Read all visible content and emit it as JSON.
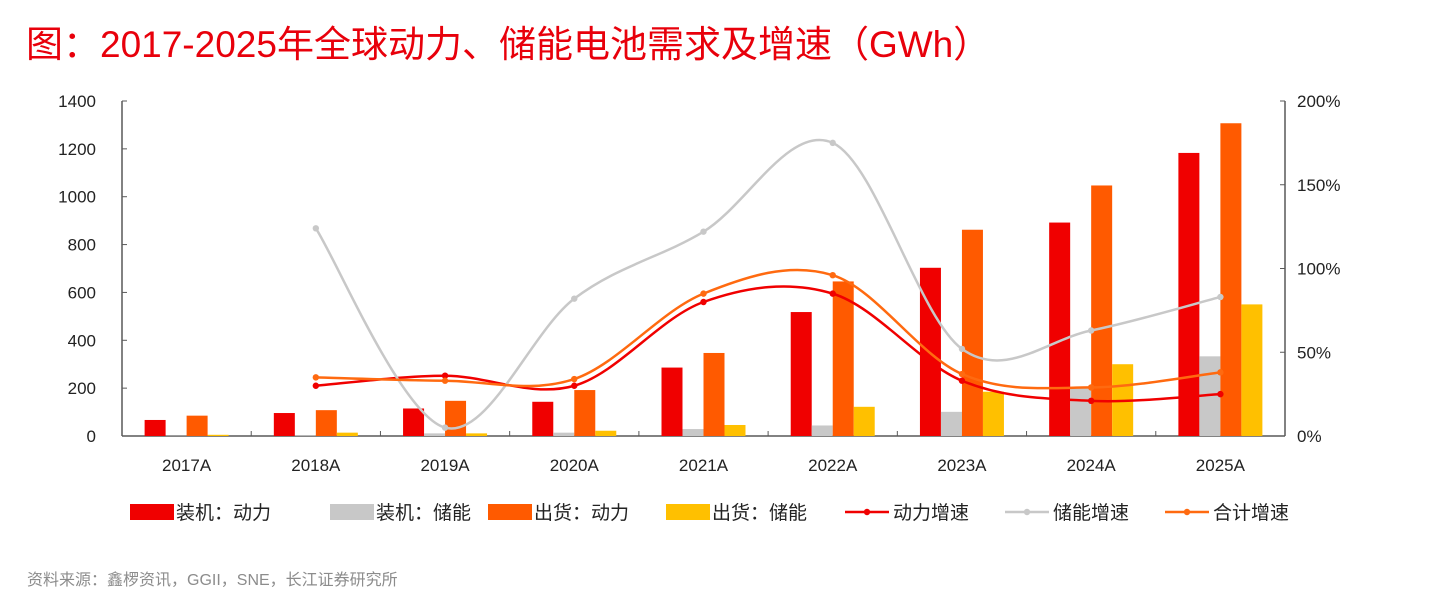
{
  "title": "图：2017-2025年全球动力、储能电池需求及增速（GWh）",
  "source": "资料来源：鑫椤资讯，GGII，SNE，长江证券研究所",
  "chart_data": {
    "type": "bar",
    "title": "图：2017-2025年全球动力、储能电池需求及增速（GWh）",
    "categories": [
      "2017A",
      "2018A",
      "2019A",
      "2020A",
      "2021A",
      "2022A",
      "2023A",
      "2024A",
      "2025A"
    ],
    "y_left": {
      "range": [
        0,
        1400
      ],
      "ticks": [
        "0",
        "200",
        "400",
        "600",
        "800",
        "1000",
        "1200",
        "1400"
      ]
    },
    "y_right": {
      "range": [
        0,
        200
      ],
      "unit": "%",
      "ticks": [
        "0%",
        "50%",
        "100%",
        "150%",
        "200%"
      ]
    },
    "grid": false,
    "legend_position": "bottom",
    "bar_series": [
      {
        "name": "装机：动力",
        "color": "#f00000",
        "values": [
          67,
          96,
          115,
          143,
          286,
          518,
          703,
          892,
          1183
        ]
      },
      {
        "name": "装机：储能",
        "color": "#c8c8c8",
        "values": [
          1,
          2,
          11,
          14,
          29,
          44,
          101,
          200,
          333
        ]
      },
      {
        "name": "出货：动力",
        "color": "#ff5a00",
        "values": [
          85,
          108,
          147,
          192,
          347,
          646,
          862,
          1047,
          1307
        ]
      },
      {
        "name": "出货：储能",
        "color": "#ffc000",
        "values": [
          5,
          14,
          11,
          22,
          46,
          122,
          185,
          300,
          550
        ]
      }
    ],
    "line_series": [
      {
        "name": "动力增速",
        "color": "#f00000",
        "axis": "right",
        "values": [
          null,
          30,
          36,
          30,
          80,
          85,
          33,
          21,
          25
        ]
      },
      {
        "name": "储能增速",
        "color": "#c8c8c8",
        "axis": "right",
        "values": [
          null,
          124,
          5,
          82,
          122,
          175,
          52,
          63,
          83
        ]
      },
      {
        "name": "合计增速",
        "color": "#ff6a10",
        "axis": "right",
        "values": [
          null,
          35,
          33,
          34,
          85,
          96,
          37,
          29,
          38
        ]
      }
    ]
  }
}
